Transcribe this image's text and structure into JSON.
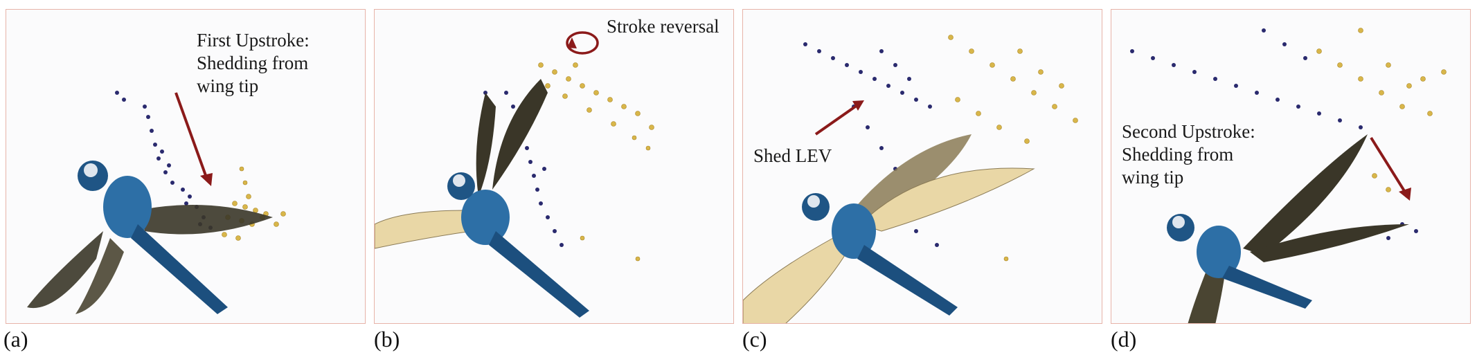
{
  "panels": [
    {
      "label": "(a)",
      "annotation": "First Upstroke:\nShedding from\nwing tip"
    },
    {
      "label": "(b)",
      "annotation": "Stroke reversal"
    },
    {
      "label": "(c)",
      "annotation": "Shed LEV"
    },
    {
      "label": "(d)",
      "annotation": "Second Upstroke:\nShedding from\nwing tip"
    }
  ],
  "colors": {
    "frame": "#e7b3a8",
    "arrow": "#8b1a1a",
    "particles_dark": "#2a2a6e",
    "particles_gold": "#d8b64a",
    "body_blue": "#2d6fa6",
    "wing_dark": "#3a3628",
    "wing_light": "#e9d7a6"
  }
}
